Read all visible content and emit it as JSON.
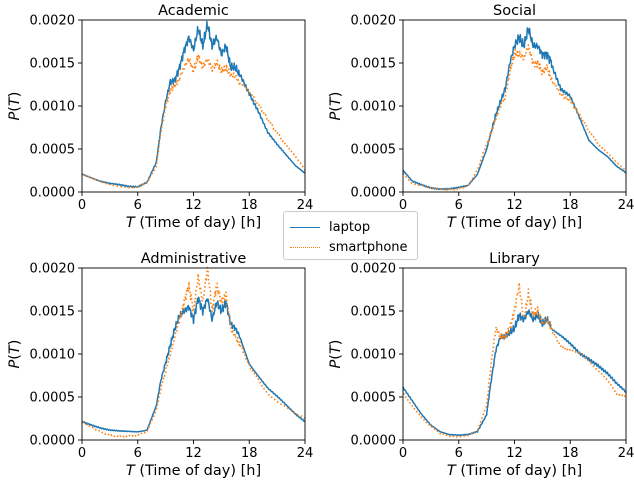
{
  "colors": {
    "laptop": "#1f77b4",
    "smartphone": "#ff7f0e"
  },
  "legend": {
    "laptop": "laptop",
    "smartphone": "smartphone",
    "placement": "center"
  },
  "chart_data": [
    {
      "type": "line",
      "title": "Academic",
      "xlabel": "T (Time of day) [h]",
      "ylabel": "P(T)",
      "xlim": [
        0,
        24
      ],
      "ylim": [
        0,
        0.002
      ],
      "xticks": [
        "0",
        "6",
        "12",
        "18",
        "24"
      ],
      "yticks": [
        "0.0000",
        "0.0005",
        "0.0010",
        "0.0015",
        "0.0020"
      ],
      "x": [
        0,
        1,
        2,
        3,
        4,
        5,
        6,
        7,
        8,
        8.5,
        9,
        9.5,
        10,
        10.5,
        11,
        11.5,
        12,
        12.5,
        13,
        13.5,
        14,
        14.5,
        15,
        15.5,
        16,
        16.5,
        17,
        18,
        19,
        20,
        21,
        22,
        23,
        24
      ],
      "series": [
        {
          "name": "laptop",
          "style": "solid",
          "values": [
            0.00021,
            0.00017,
            0.00013,
            0.0001,
            8e-05,
            6e-05,
            6e-05,
            0.00012,
            0.00035,
            0.00075,
            0.00105,
            0.00128,
            0.0013,
            0.00145,
            0.00165,
            0.0018,
            0.00165,
            0.0019,
            0.0017,
            0.00195,
            0.0017,
            0.0018,
            0.0016,
            0.0017,
            0.00145,
            0.00145,
            0.00135,
            0.00115,
            0.00095,
            0.0007,
            0.00055,
            0.00042,
            0.0003,
            0.00022
          ]
        },
        {
          "name": "smartphone",
          "style": "dotted",
          "values": [
            0.0002,
            0.00016,
            0.00012,
            9e-05,
            7e-05,
            5e-05,
            5e-05,
            0.0001,
            0.0003,
            0.0007,
            0.001,
            0.00118,
            0.00125,
            0.00132,
            0.00145,
            0.00155,
            0.0014,
            0.00158,
            0.00145,
            0.00155,
            0.00142,
            0.0015,
            0.0014,
            0.00145,
            0.00135,
            0.00135,
            0.00125,
            0.00115,
            0.001,
            0.00085,
            0.0007,
            0.00055,
            0.0004,
            0.00025
          ]
        }
      ]
    },
    {
      "type": "line",
      "title": "Social",
      "xlabel": "T (Time of day) [h]",
      "ylabel": "P(T)",
      "xlim": [
        0,
        24
      ],
      "ylim": [
        0,
        0.002
      ],
      "xticks": [
        "0",
        "6",
        "12",
        "18",
        "24"
      ],
      "yticks": [
        "0.0000",
        "0.0005",
        "0.0010",
        "0.0015",
        "0.0020"
      ],
      "x": [
        0,
        1,
        2,
        3,
        4,
        5,
        6,
        7,
        8,
        9,
        9.5,
        10,
        10.5,
        11,
        11.5,
        12,
        12.5,
        13,
        13.5,
        14,
        14.5,
        15,
        15.5,
        16,
        17,
        18,
        19,
        20,
        21,
        22,
        23,
        24
      ],
      "series": [
        {
          "name": "laptop",
          "style": "solid",
          "values": [
            0.00025,
            0.00012,
            8e-05,
            5e-05,
            4e-05,
            4e-05,
            5e-05,
            7e-05,
            0.0002,
            0.0005,
            0.0007,
            0.0009,
            0.00105,
            0.0012,
            0.0015,
            0.0017,
            0.0018,
            0.0017,
            0.0019,
            0.0017,
            0.0017,
            0.0016,
            0.0016,
            0.0015,
            0.0012,
            0.0011,
            0.00085,
            0.0006,
            0.0005,
            0.00042,
            0.0003,
            0.00022
          ]
        },
        {
          "name": "smartphone",
          "style": "dotted",
          "values": [
            0.00022,
            0.0001,
            7e-05,
            4e-05,
            3e-05,
            3e-05,
            4e-05,
            8e-05,
            0.00025,
            0.00055,
            0.0007,
            0.00085,
            0.001,
            0.0011,
            0.0014,
            0.0016,
            0.0016,
            0.00155,
            0.0017,
            0.0015,
            0.0015,
            0.0014,
            0.00145,
            0.0013,
            0.00115,
            0.00108,
            0.0009,
            0.0007,
            0.00055,
            0.00045,
            0.00035,
            0.00025
          ]
        }
      ]
    },
    {
      "type": "line",
      "title": "Administrative",
      "xlabel": "T (Time of day) [h]",
      "ylabel": "P(T)",
      "xlim": [
        0,
        24
      ],
      "ylim": [
        0,
        0.002
      ],
      "xticks": [
        "0",
        "6",
        "12",
        "18",
        "24"
      ],
      "yticks": [
        "0.0000",
        "0.0005",
        "0.0010",
        "0.0015",
        "0.0020"
      ],
      "x": [
        0,
        1,
        2,
        3,
        4,
        5,
        6,
        7,
        8,
        8.5,
        9,
        9.5,
        10,
        10.5,
        11,
        11.5,
        12,
        12.5,
        13,
        13.5,
        14,
        14.5,
        15,
        15.5,
        16,
        16.5,
        17,
        18,
        19,
        20,
        21,
        22,
        23,
        24
      ],
      "series": [
        {
          "name": "laptop",
          "style": "solid",
          "values": [
            0.00022,
            0.00018,
            0.00014,
            0.00011,
            0.0001,
            0.0001,
            0.0001,
            0.00012,
            0.0004,
            0.0007,
            0.0009,
            0.0011,
            0.0013,
            0.00145,
            0.0015,
            0.00155,
            0.0014,
            0.00165,
            0.0015,
            0.00165,
            0.0014,
            0.0016,
            0.0015,
            0.0016,
            0.00135,
            0.0013,
            0.0012,
            0.0009,
            0.00075,
            0.0006,
            0.0005,
            0.0004,
            0.0003,
            0.00022
          ]
        },
        {
          "name": "smartphone",
          "style": "dotted",
          "values": [
            0.0002,
            0.00015,
            0.0001,
            6e-05,
            4e-05,
            4e-05,
            5e-05,
            0.0001,
            0.00035,
            0.0006,
            0.0008,
            0.001,
            0.0012,
            0.0014,
            0.0016,
            0.0018,
            0.0015,
            0.0019,
            0.0016,
            0.002,
            0.0015,
            0.0018,
            0.0016,
            0.0017,
            0.0013,
            0.0012,
            0.0011,
            0.00085,
            0.0007,
            0.00055,
            0.00045,
            0.00038,
            0.0003,
            0.00025
          ]
        }
      ]
    },
    {
      "type": "line",
      "title": "Library",
      "xlabel": "T (Time of day) [h]",
      "ylabel": "P(T)",
      "xlim": [
        0,
        24
      ],
      "ylim": [
        0,
        0.002
      ],
      "xticks": [
        "0",
        "6",
        "12",
        "18",
        "24"
      ],
      "yticks": [
        "0.0000",
        "0.0005",
        "0.0010",
        "0.0015",
        "0.0020"
      ],
      "x": [
        0,
        1,
        2,
        3,
        4,
        5,
        6,
        7,
        8,
        9,
        9.5,
        10,
        10.5,
        11,
        11.5,
        12,
        12.5,
        13,
        13.5,
        14,
        14.5,
        15,
        15.5,
        16,
        17,
        18,
        19,
        20,
        21,
        22,
        23,
        24
      ],
      "series": [
        {
          "name": "laptop",
          "style": "solid",
          "values": [
            0.0006,
            0.00045,
            0.0003,
            0.00018,
            0.0001,
            6e-05,
            5e-05,
            6e-05,
            0.0001,
            0.0003,
            0.0007,
            0.00105,
            0.0012,
            0.0012,
            0.00125,
            0.0013,
            0.00145,
            0.0014,
            0.0015,
            0.0014,
            0.00145,
            0.00135,
            0.0014,
            0.0013,
            0.0012,
            0.0011,
            0.001,
            0.00095,
            0.00088,
            0.00078,
            0.00065,
            0.00055
          ]
        },
        {
          "name": "smartphone",
          "style": "dotted",
          "values": [
            0.00055,
            0.0004,
            0.00026,
            0.00015,
            8e-05,
            5e-05,
            4e-05,
            5e-05,
            0.0001,
            0.0004,
            0.0009,
            0.0013,
            0.0012,
            0.0012,
            0.0013,
            0.0015,
            0.0018,
            0.0014,
            0.0017,
            0.00145,
            0.0015,
            0.00135,
            0.0014,
            0.0013,
            0.0011,
            0.00105,
            0.001,
            0.0009,
            0.0008,
            0.0007,
            0.00055,
            0.0005
          ]
        }
      ]
    }
  ]
}
